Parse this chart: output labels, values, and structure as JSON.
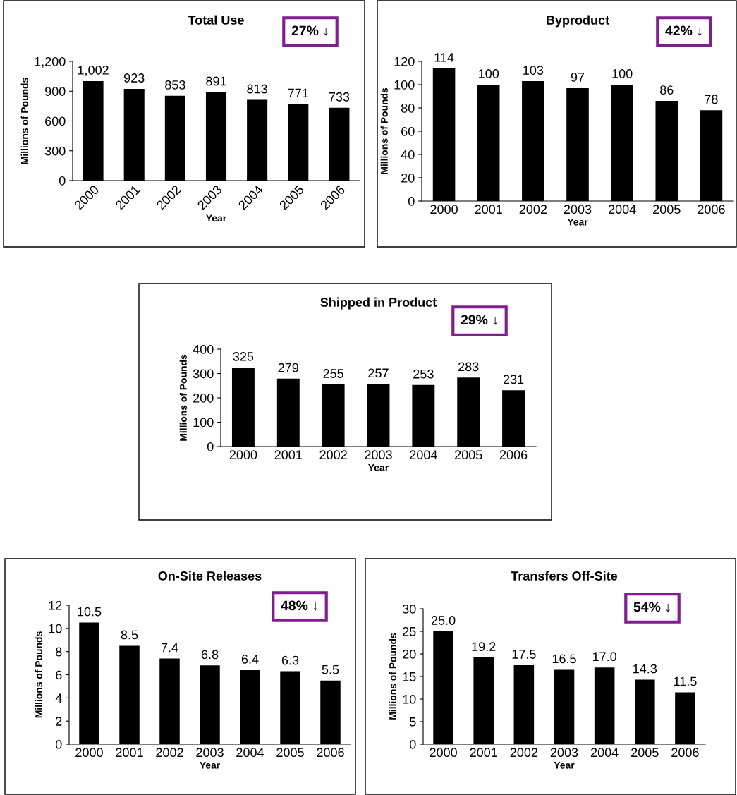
{
  "chart_data": [
    {
      "type": "bar",
      "title": "Total Use",
      "xlabel": "Year",
      "ylabel": "Millions of Pounds",
      "categories": [
        "2000",
        "2001",
        "2002",
        "2003",
        "2004",
        "2005",
        "2006"
      ],
      "values": [
        1002,
        923,
        853,
        891,
        813,
        771,
        733
      ],
      "value_labels": [
        "1,002",
        "923",
        "853",
        "891",
        "813",
        "771",
        "733"
      ],
      "color": "#000000",
      "ylim": [
        0,
        1200
      ],
      "yticks": [
        0,
        300,
        600,
        900,
        {
          "value": 1200,
          "label": "1,200"
        }
      ],
      "grid": false,
      "annotations": [
        "27% ↓"
      ]
    },
    {
      "type": "bar",
      "title": "Byproduct",
      "xlabel": "Year",
      "ylabel": "Millions of Pounds",
      "categories": [
        "2000",
        "2001",
        "2002",
        "2003",
        "2004",
        "2005",
        "2006"
      ],
      "values": [
        114,
        100,
        103,
        97,
        100,
        86,
        78
      ],
      "value_labels": [
        "114",
        "100",
        "103",
        "97",
        "100",
        "86",
        "78"
      ],
      "color": "#000000",
      "ylim": [
        0,
        120
      ],
      "yticks": [
        0,
        20,
        40,
        60,
        80,
        100,
        120
      ],
      "grid": false,
      "annotations": [
        "42% ↓"
      ]
    },
    {
      "type": "bar",
      "title": "Shipped in Product",
      "xlabel": "Year",
      "ylabel": "Millions of Pounds",
      "categories": [
        "2000",
        "2001",
        "2002",
        "2003",
        "2004",
        "2005",
        "2006"
      ],
      "values": [
        325,
        279,
        255,
        257,
        253,
        283,
        231
      ],
      "value_labels": [
        "325",
        "279",
        "255",
        "257",
        "253",
        "283",
        "231"
      ],
      "color": "#000000",
      "ylim": [
        0,
        400
      ],
      "yticks": [
        0,
        100,
        200,
        300,
        400
      ],
      "grid": false,
      "annotations": [
        "29% ↓"
      ]
    },
    {
      "type": "bar",
      "title": "On-Site Releases",
      "xlabel": "Year",
      "ylabel": "Millions of Pounds",
      "categories": [
        "2000",
        "2001",
        "2002",
        "2003",
        "2004",
        "2005",
        "2006"
      ],
      "values": [
        10.5,
        8.5,
        7.4,
        6.8,
        6.4,
        6.3,
        5.5
      ],
      "value_labels": [
        "10.5",
        "8.5",
        "7.4",
        "6.8",
        "6.4",
        "6.3",
        "5.5"
      ],
      "color": "#000000",
      "ylim": [
        0,
        12
      ],
      "yticks": [
        0,
        2,
        4,
        6,
        8,
        10,
        12
      ],
      "grid": false,
      "annotations": [
        "48% ↓"
      ]
    },
    {
      "type": "bar",
      "title": "Transfers Off-Site",
      "xlabel": "Year",
      "ylabel": "Millions of Pounds",
      "categories": [
        "2000",
        "2001",
        "2002",
        "2003",
        "2004",
        "2005",
        "2006"
      ],
      "values": [
        25.0,
        19.2,
        17.5,
        16.5,
        17.0,
        14.3,
        11.5
      ],
      "value_labels": [
        "25.0",
        "19.2",
        "17.5",
        "16.5",
        "17.0",
        "14.3",
        "11.5"
      ],
      "color": "#000000",
      "ylim": [
        0,
        30
      ],
      "yticks": [
        0,
        5,
        10,
        15,
        20,
        25,
        30
      ],
      "grid": false,
      "annotations": [
        "54% ↓"
      ]
    }
  ]
}
